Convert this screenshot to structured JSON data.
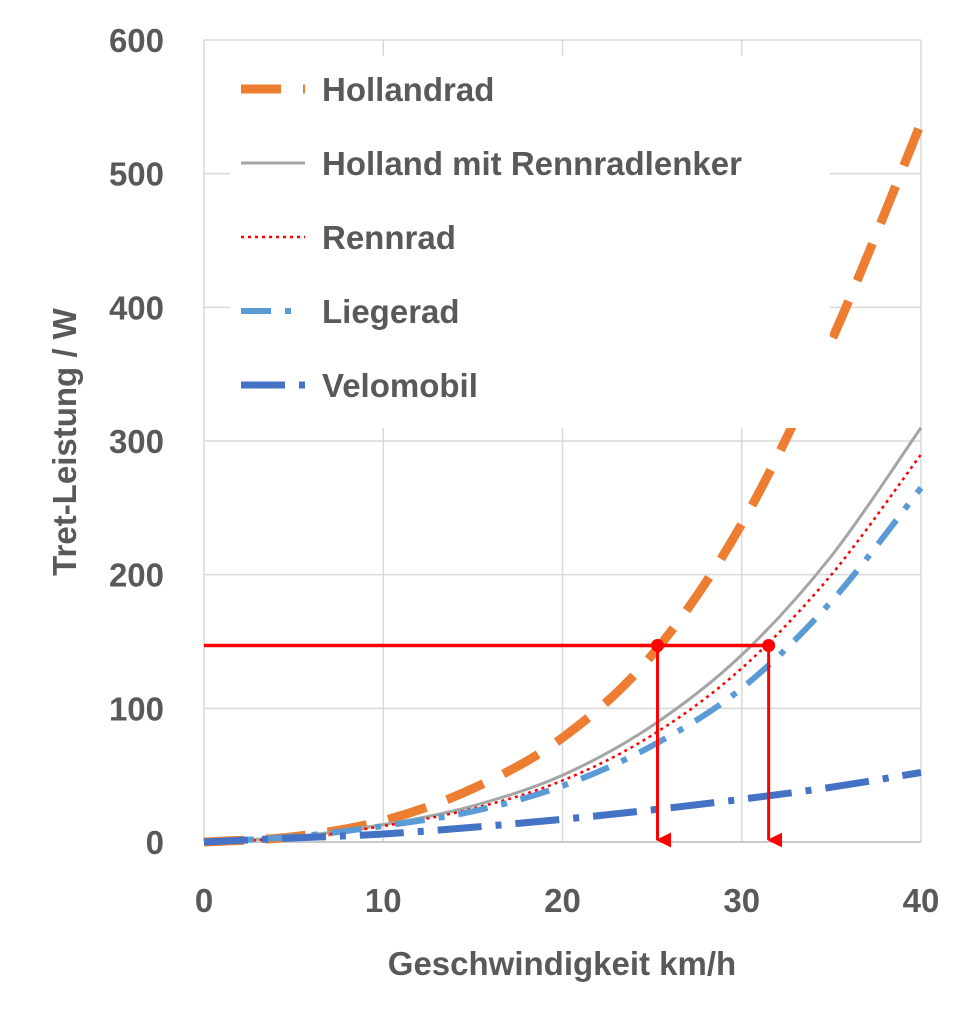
{
  "chart_data": {
    "type": "line",
    "xlabel": "Geschwindigkeit  km/h",
    "ylabel": "Tret-Leistung  / W",
    "xlim": [
      0,
      40
    ],
    "ylim": [
      0,
      600
    ],
    "x_ticks": [
      "0",
      "10",
      "20",
      "30",
      "40"
    ],
    "y_ticks": [
      "0",
      "100",
      "200",
      "300",
      "400",
      "500",
      "600"
    ],
    "grid": true,
    "legend_position": "top-left",
    "series": [
      {
        "name": "Hollandrad",
        "style": "long-dash",
        "color": "#ED7D31",
        "x": [
          0,
          5,
          10,
          15,
          20,
          25,
          30,
          35,
          40
        ],
        "y": [
          0,
          4,
          16,
          40,
          78,
          140,
          238,
          375,
          538
        ]
      },
      {
        "name": "Holland mit Rennradlenker",
        "style": "solid",
        "color": "#A5A5A5",
        "x": [
          0,
          5,
          10,
          15,
          20,
          25,
          30,
          35,
          40
        ],
        "y": [
          0,
          4,
          13,
          27,
          50,
          87,
          140,
          214,
          310
        ]
      },
      {
        "name": "Rennrad",
        "style": "dotted",
        "color": "#FF0000",
        "x": [
          0,
          5,
          10,
          15,
          20,
          25,
          30,
          35,
          40
        ],
        "y": [
          0,
          3,
          12,
          25,
          46,
          80,
          130,
          200,
          290
        ]
      },
      {
        "name": "Liegerad",
        "style": "dash-dot",
        "color": "#5B9BD5",
        "x": [
          0,
          5,
          10,
          15,
          20,
          25,
          30,
          35,
          40
        ],
        "y": [
          0,
          4,
          12,
          23,
          42,
          72,
          115,
          180,
          265
        ]
      },
      {
        "name": "Velomobil",
        "style": "long-dash-dot",
        "color": "#4472C4",
        "x": [
          0,
          5,
          10,
          15,
          20,
          25,
          30,
          35,
          40
        ],
        "y": [
          0,
          3,
          6,
          11,
          17,
          24,
          32,
          41,
          52
        ]
      }
    ],
    "annotations": [
      {
        "type": "power-level-line",
        "color": "#FF0000",
        "y": 147,
        "x_from": 0,
        "x_to": 31.5
      },
      {
        "type": "drop-arrow",
        "color": "#FF0000",
        "x": 25.3,
        "y_from": 147,
        "y_to": 0
      },
      {
        "type": "drop-arrow",
        "color": "#FF0000",
        "x": 31.5,
        "y_from": 147,
        "y_to": 0
      }
    ]
  }
}
